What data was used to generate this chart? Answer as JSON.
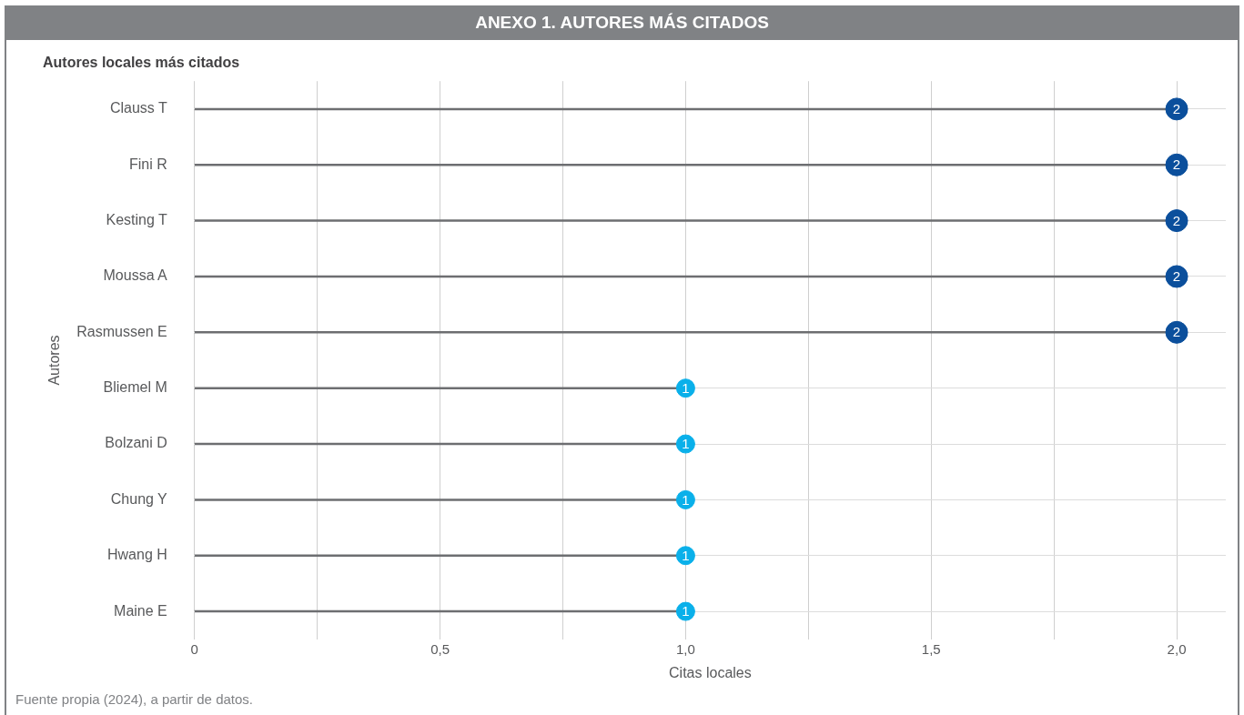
{
  "chart_data": {
    "type": "lollipop",
    "title": "ANEXO 1. AUTORES MÁS CITADOS",
    "subtitle": "Autores locales más citados",
    "xlabel": "Citas locales",
    "ylabel": "Autores",
    "orientation": "horizontal",
    "categories": [
      "Clauss T",
      "Fini R",
      "Kesting T",
      "Moussa A",
      "Rasmussen E",
      "Bliemel M",
      "Bolzani D",
      "Chung Y",
      "Hwang H",
      "Maine E"
    ],
    "values": [
      2,
      2,
      2,
      2,
      2,
      1,
      1,
      1,
      1,
      1
    ],
    "color": "#6d6e71",
    "colors": [
      "#0b4f9c",
      "#0b4f9c",
      "#0b4f9c",
      "#0b4f9c",
      "#0b4f9c",
      "#0ab0ea",
      "#0ab0ea",
      "#0ab0ea",
      "#0ab0ea",
      "#0ab0ea"
    ],
    "data_labels": true,
    "grid": true,
    "legend": false,
    "marker": "circle",
    "xlim": [
      0,
      2.1
    ],
    "xticks": [
      {
        "value": 0,
        "label": "0"
      },
      {
        "value": 0.25,
        "label": null
      },
      {
        "value": 0.5,
        "label": "0,5"
      },
      {
        "value": 0.75,
        "label": null
      },
      {
        "value": 1,
        "label": "1,0"
      },
      {
        "value": 1.25,
        "label": null
      },
      {
        "value": 1.5,
        "label": "1,5"
      },
      {
        "value": 1.75,
        "label": null
      },
      {
        "value": 2,
        "label": "2,0"
      }
    ],
    "annotations": [
      "Fuente propia (2024), a partir de datos."
    ]
  }
}
